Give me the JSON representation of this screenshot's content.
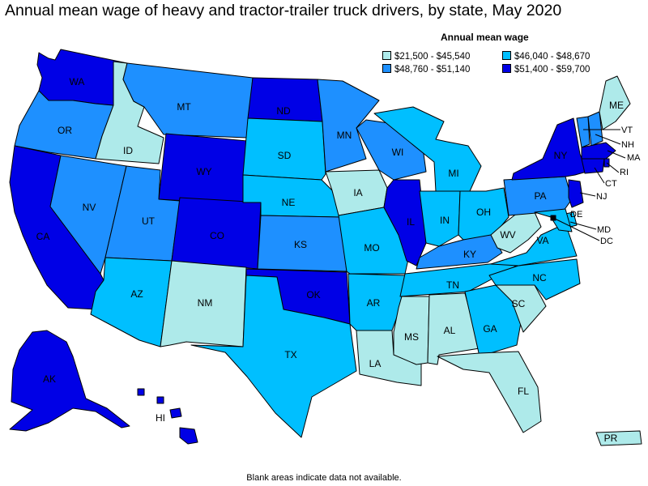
{
  "title": "Annual mean wage of heavy and tractor-trailer truck drivers, by state, May 2020",
  "legend": {
    "title": "Annual mean wage",
    "items": [
      {
        "label": "$21,500 - $45,540",
        "color": "#aeeaea"
      },
      {
        "label": "$46,040 - $48,670",
        "color": "#00bfff"
      },
      {
        "label": "$48,760 - $51,140",
        "color": "#1e90ff"
      },
      {
        "label": "$51,400 - $59,700",
        "color": "#0000e6"
      }
    ]
  },
  "footnote": "Blank areas indicate data not available.",
  "states": {
    "WA": {
      "label": "WA",
      "bin": 3
    },
    "OR": {
      "label": "OR",
      "bin": 2
    },
    "CA": {
      "label": "CA",
      "bin": 3
    },
    "ID": {
      "label": "ID",
      "bin": 0
    },
    "NV": {
      "label": "NV",
      "bin": 2
    },
    "MT": {
      "label": "MT",
      "bin": 2
    },
    "WY": {
      "label": "WY",
      "bin": 3
    },
    "UT": {
      "label": "UT",
      "bin": 2
    },
    "AZ": {
      "label": "AZ",
      "bin": 1
    },
    "CO": {
      "label": "CO",
      "bin": 3
    },
    "NM": {
      "label": "NM",
      "bin": 0
    },
    "ND": {
      "label": "ND",
      "bin": 3
    },
    "SD": {
      "label": "SD",
      "bin": 1
    },
    "NE": {
      "label": "NE",
      "bin": 1
    },
    "KS": {
      "label": "KS",
      "bin": 2
    },
    "OK": {
      "label": "OK",
      "bin": 3
    },
    "TX": {
      "label": "TX",
      "bin": 1
    },
    "MN": {
      "label": "MN",
      "bin": 2
    },
    "IA": {
      "label": "IA",
      "bin": 0
    },
    "MO": {
      "label": "MO",
      "bin": 1
    },
    "AR": {
      "label": "AR",
      "bin": 1
    },
    "LA": {
      "label": "LA",
      "bin": 0
    },
    "WI": {
      "label": "WI",
      "bin": 2
    },
    "IL": {
      "label": "IL",
      "bin": 3
    },
    "MI": {
      "label": "MI",
      "bin": 1
    },
    "IN": {
      "label": "IN",
      "bin": 1
    },
    "OH": {
      "label": "OH",
      "bin": 1
    },
    "KY": {
      "label": "KY",
      "bin": 2
    },
    "TN": {
      "label": "TN",
      "bin": 1
    },
    "MS": {
      "label": "MS",
      "bin": 0
    },
    "AL": {
      "label": "AL",
      "bin": 0
    },
    "GA": {
      "label": "GA",
      "bin": 1
    },
    "FL": {
      "label": "FL",
      "bin": 0
    },
    "SC": {
      "label": "SC",
      "bin": 0
    },
    "NC": {
      "label": "NC",
      "bin": 1
    },
    "VA": {
      "label": "VA",
      "bin": 1
    },
    "WV": {
      "label": "WV",
      "bin": 0
    },
    "PA": {
      "label": "PA",
      "bin": 2
    },
    "NY": {
      "label": "NY",
      "bin": 3
    },
    "VT": {
      "label": "VT",
      "bin": 2
    },
    "NH": {
      "label": "NH",
      "bin": 2
    },
    "ME": {
      "label": "ME",
      "bin": 0
    },
    "MA": {
      "label": "MA",
      "bin": 3
    },
    "RI": {
      "label": "RI",
      "bin": 3
    },
    "CT": {
      "label": "CT",
      "bin": 3
    },
    "NJ": {
      "label": "NJ",
      "bin": 3
    },
    "DE": {
      "label": "DE",
      "bin": 1
    },
    "MD": {
      "label": "MD",
      "bin": 1
    },
    "DC": {
      "label": "DC",
      "bin": 3
    },
    "AK": {
      "label": "AK",
      "bin": 3
    },
    "HI": {
      "label": "HI",
      "bin": 3
    },
    "PR": {
      "label": "PR",
      "bin": 0
    }
  }
}
